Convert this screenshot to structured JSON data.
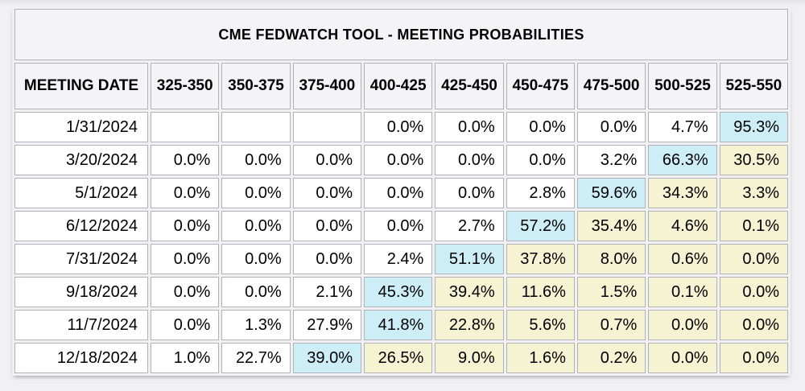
{
  "colors": {
    "highlight_blue": "#cdeef7",
    "highlight_yellow": "#f6f3d3",
    "header_bg": "#f4f4f6",
    "cell_bg": "#ffffff",
    "border": "#b1b1b8",
    "page_bg": "#f1f1f3",
    "text": "#000000"
  },
  "chart_data": {
    "type": "table",
    "title": "CME FEDWATCH TOOL - MEETING PROBABILITIES",
    "columns": [
      "MEETING DATE",
      "325-350",
      "350-375",
      "375-400",
      "400-425",
      "425-450",
      "450-475",
      "475-500",
      "500-525",
      "525-550"
    ],
    "highlight_legend": {
      "blue": "highest probability in row",
      "yellow": "cells right of highest probability"
    },
    "rows": [
      {
        "date": "1/31/2024",
        "cells": [
          {
            "v": "",
            "h": "none"
          },
          {
            "v": "",
            "h": "none"
          },
          {
            "v": "",
            "h": "none"
          },
          {
            "v": "0.0%",
            "h": "none"
          },
          {
            "v": "0.0%",
            "h": "none"
          },
          {
            "v": "0.0%",
            "h": "none"
          },
          {
            "v": "0.0%",
            "h": "none"
          },
          {
            "v": "4.7%",
            "h": "none"
          },
          {
            "v": "95.3%",
            "h": "blue"
          }
        ]
      },
      {
        "date": "3/20/2024",
        "cells": [
          {
            "v": "0.0%",
            "h": "none"
          },
          {
            "v": "0.0%",
            "h": "none"
          },
          {
            "v": "0.0%",
            "h": "none"
          },
          {
            "v": "0.0%",
            "h": "none"
          },
          {
            "v": "0.0%",
            "h": "none"
          },
          {
            "v": "0.0%",
            "h": "none"
          },
          {
            "v": "3.2%",
            "h": "none"
          },
          {
            "v": "66.3%",
            "h": "blue"
          },
          {
            "v": "30.5%",
            "h": "yellow"
          }
        ]
      },
      {
        "date": "5/1/2024",
        "cells": [
          {
            "v": "0.0%",
            "h": "none"
          },
          {
            "v": "0.0%",
            "h": "none"
          },
          {
            "v": "0.0%",
            "h": "none"
          },
          {
            "v": "0.0%",
            "h": "none"
          },
          {
            "v": "0.0%",
            "h": "none"
          },
          {
            "v": "2.8%",
            "h": "none"
          },
          {
            "v": "59.6%",
            "h": "blue"
          },
          {
            "v": "34.3%",
            "h": "yellow"
          },
          {
            "v": "3.3%",
            "h": "yellow"
          }
        ]
      },
      {
        "date": "6/12/2024",
        "cells": [
          {
            "v": "0.0%",
            "h": "none"
          },
          {
            "v": "0.0%",
            "h": "none"
          },
          {
            "v": "0.0%",
            "h": "none"
          },
          {
            "v": "0.0%",
            "h": "none"
          },
          {
            "v": "2.7%",
            "h": "none"
          },
          {
            "v": "57.2%",
            "h": "blue"
          },
          {
            "v": "35.4%",
            "h": "yellow"
          },
          {
            "v": "4.6%",
            "h": "yellow"
          },
          {
            "v": "0.1%",
            "h": "yellow"
          }
        ]
      },
      {
        "date": "7/31/2024",
        "cells": [
          {
            "v": "0.0%",
            "h": "none"
          },
          {
            "v": "0.0%",
            "h": "none"
          },
          {
            "v": "0.0%",
            "h": "none"
          },
          {
            "v": "2.4%",
            "h": "none"
          },
          {
            "v": "51.1%",
            "h": "blue"
          },
          {
            "v": "37.8%",
            "h": "yellow"
          },
          {
            "v": "8.0%",
            "h": "yellow"
          },
          {
            "v": "0.6%",
            "h": "yellow"
          },
          {
            "v": "0.0%",
            "h": "yellow"
          }
        ]
      },
      {
        "date": "9/18/2024",
        "cells": [
          {
            "v": "0.0%",
            "h": "none"
          },
          {
            "v": "0.0%",
            "h": "none"
          },
          {
            "v": "2.1%",
            "h": "none"
          },
          {
            "v": "45.3%",
            "h": "blue"
          },
          {
            "v": "39.4%",
            "h": "yellow"
          },
          {
            "v": "11.6%",
            "h": "yellow"
          },
          {
            "v": "1.5%",
            "h": "yellow"
          },
          {
            "v": "0.1%",
            "h": "yellow"
          },
          {
            "v": "0.0%",
            "h": "yellow"
          }
        ]
      },
      {
        "date": "11/7/2024",
        "cells": [
          {
            "v": "0.0%",
            "h": "none"
          },
          {
            "v": "1.3%",
            "h": "none"
          },
          {
            "v": "27.9%",
            "h": "none"
          },
          {
            "v": "41.8%",
            "h": "blue"
          },
          {
            "v": "22.8%",
            "h": "yellow"
          },
          {
            "v": "5.6%",
            "h": "yellow"
          },
          {
            "v": "0.7%",
            "h": "yellow"
          },
          {
            "v": "0.0%",
            "h": "yellow"
          },
          {
            "v": "0.0%",
            "h": "yellow"
          }
        ]
      },
      {
        "date": "12/18/2024",
        "cells": [
          {
            "v": "1.0%",
            "h": "none"
          },
          {
            "v": "22.7%",
            "h": "none"
          },
          {
            "v": "39.0%",
            "h": "blue"
          },
          {
            "v": "26.5%",
            "h": "yellow"
          },
          {
            "v": "9.0%",
            "h": "yellow"
          },
          {
            "v": "1.6%",
            "h": "yellow"
          },
          {
            "v": "0.2%",
            "h": "yellow"
          },
          {
            "v": "0.0%",
            "h": "yellow"
          },
          {
            "v": "0.0%",
            "h": "yellow"
          }
        ]
      }
    ]
  }
}
